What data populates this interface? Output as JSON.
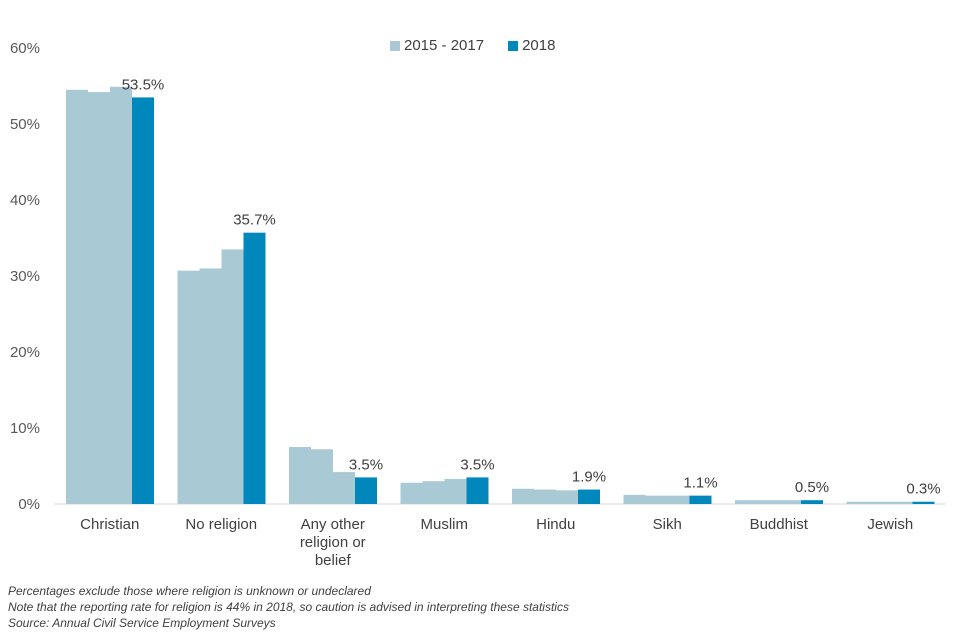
{
  "chart_data": {
    "type": "bar",
    "ylim": [
      0,
      60
    ],
    "yticks": [
      "0%",
      "10%",
      "20%",
      "30%",
      "40%",
      "50%",
      "60%"
    ],
    "categories": [
      "Christian",
      "No religion",
      "Any other religion or belief",
      "Muslim",
      "Hindu",
      "Sikh",
      "Buddhist",
      "Jewish"
    ],
    "category_lines": [
      [
        "Christian"
      ],
      [
        "No religion"
      ],
      [
        "Any other",
        "religion or",
        "belief"
      ],
      [
        "Muslim"
      ],
      [
        "Hindu"
      ],
      [
        "Sikh"
      ],
      [
        "Buddhist"
      ],
      [
        "Jewish"
      ]
    ],
    "series": [
      {
        "name": "2015 - 2017",
        "color": "#a9c9d5",
        "values_by_year": [
          [
            54.5,
            54.2,
            54.9
          ],
          [
            30.7,
            31.0,
            33.5
          ],
          [
            7.5,
            7.2,
            4.2
          ],
          [
            2.8,
            3.0,
            3.3
          ],
          [
            2.0,
            1.9,
            1.8
          ],
          [
            1.2,
            1.1,
            1.1
          ],
          [
            0.5,
            0.5,
            0.5
          ],
          [
            0.3,
            0.3,
            0.3
          ]
        ]
      },
      {
        "name": "2018",
        "color": "#0088bd",
        "values": [
          53.5,
          35.7,
          3.5,
          3.5,
          1.9,
          1.1,
          0.5,
          0.3
        ],
        "labels": [
          "53.5%",
          "35.7%",
          "3.5%",
          "3.5%",
          "1.9%",
          "1.1%",
          "0.5%",
          "0.3%"
        ]
      }
    ]
  },
  "notes": {
    "line1": "Percentages exclude those where  religion  is unknown  or undeclared",
    "line2": "Note that the reporting rate for religion is 44% in 2018, so caution is advised in interpreting  these statistics",
    "line3": "Source: Annual Civil Service Employment Surveys"
  }
}
